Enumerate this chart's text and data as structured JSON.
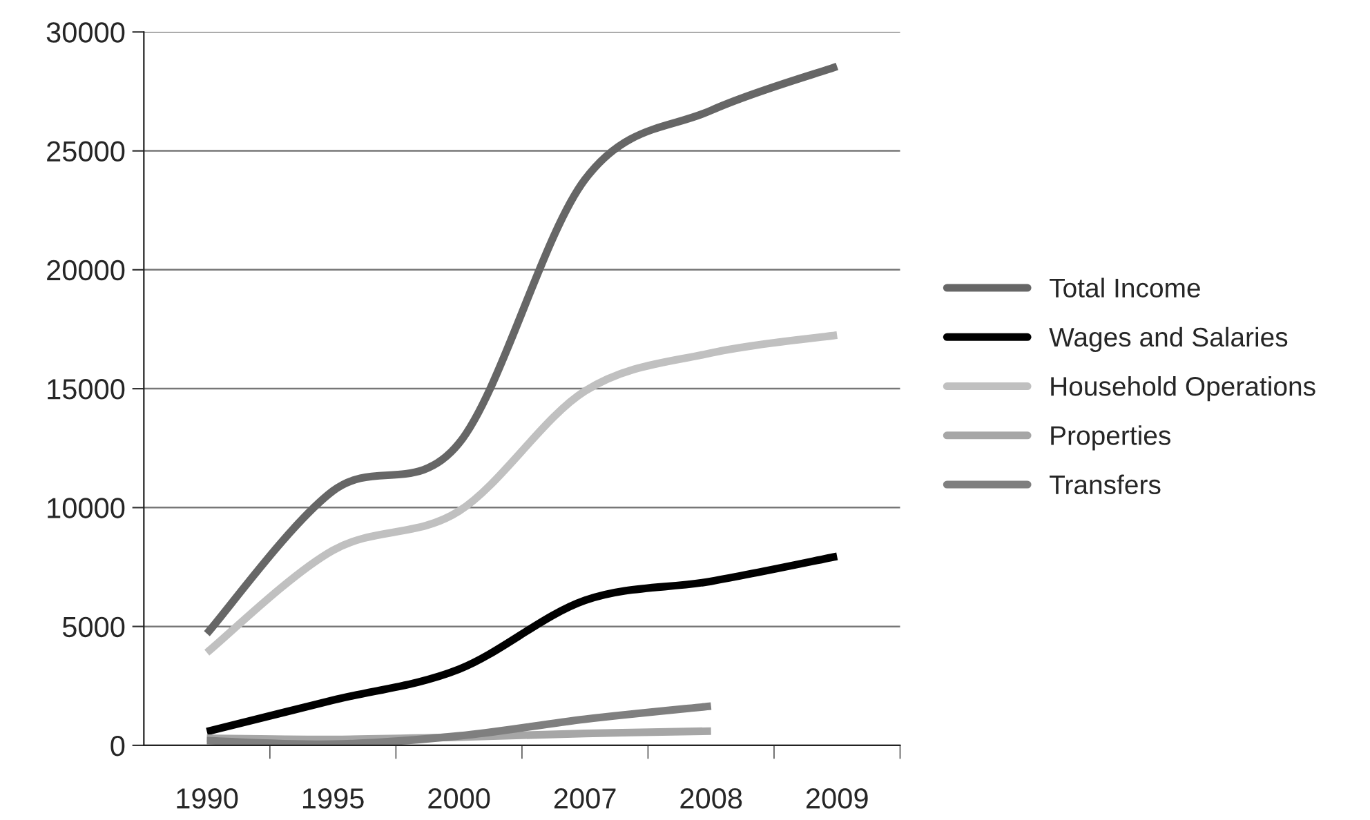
{
  "chart_data": {
    "type": "line",
    "categories": [
      "1990",
      "1995",
      "2000",
      "2007",
      "2008",
      "2009"
    ],
    "series": [
      {
        "name": "Total Income",
        "color": "#666666",
        "values": [
          4700,
          10700,
          12700,
          23800,
          26700,
          28550
        ]
      },
      {
        "name": "Wages and Salaries",
        "color": "#000000",
        "values": [
          580,
          1900,
          3200,
          6100,
          6900,
          7950
        ]
      },
      {
        "name": "Household Operations",
        "color": "#c0c0c0",
        "values": [
          3900,
          8200,
          9850,
          14900,
          16500,
          17250
        ]
      },
      {
        "name": "Properties",
        "color": "#a6a6a6",
        "values": [
          300,
          250,
          350,
          500,
          600,
          null
        ]
      },
      {
        "name": "Transfers",
        "color": "#7f7f7f",
        "values": [
          200,
          50,
          400,
          1100,
          1650,
          null
        ]
      }
    ],
    "ylim": [
      0,
      30000
    ],
    "yticks": [
      0,
      5000,
      10000,
      15000,
      20000,
      25000,
      30000
    ],
    "grid": "y",
    "legend": "right",
    "marker": "none",
    "line_style": "solid"
  }
}
